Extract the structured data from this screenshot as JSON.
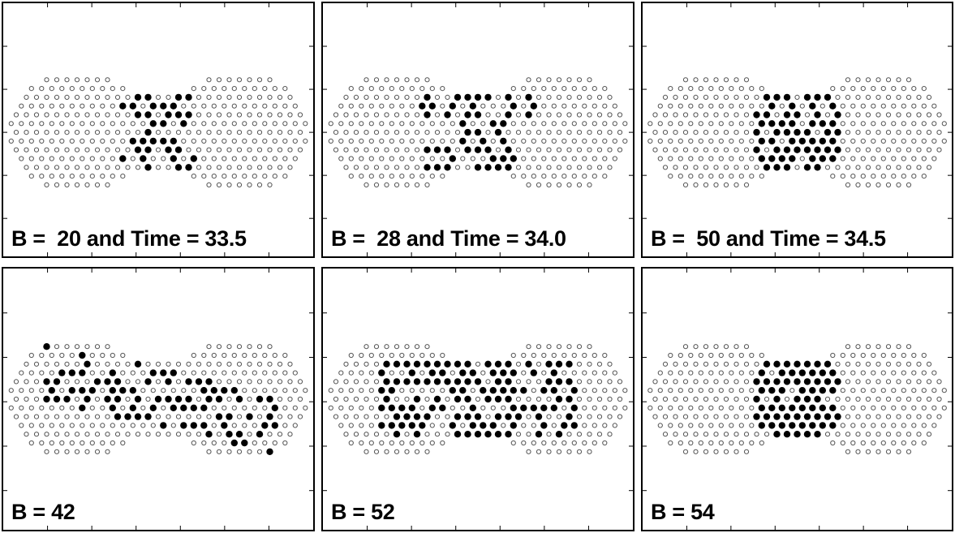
{
  "figure": {
    "panels": [
      {
        "id": "p1",
        "label": "B =  20 and Time = 33.5",
        "seed": 11,
        "pattern": "bowtie",
        "dark_fraction": 0.55
      },
      {
        "id": "p2",
        "label": "B =  28 and Time = 34.0",
        "seed": 23,
        "pattern": "bowtie-wide",
        "dark_fraction": 0.6
      },
      {
        "id": "p3",
        "label": "B =  50 and Time = 34.5",
        "seed": 37,
        "pattern": "center",
        "dark_fraction": 0.85
      },
      {
        "id": "p4",
        "label": "B = 42",
        "seed": 41,
        "pattern": "band",
        "dark_fraction": 0.6
      },
      {
        "id": "p5",
        "label": "B = 52",
        "seed": 53,
        "pattern": "band-wide",
        "dark_fraction": 0.65
      },
      {
        "id": "p6",
        "label": "B = 54",
        "seed": 67,
        "pattern": "center",
        "dark_fraction": 0.9
      }
    ],
    "colors": {
      "frame": "#000000",
      "filled_dot": "#000000",
      "open_dot": "#555555"
    }
  }
}
